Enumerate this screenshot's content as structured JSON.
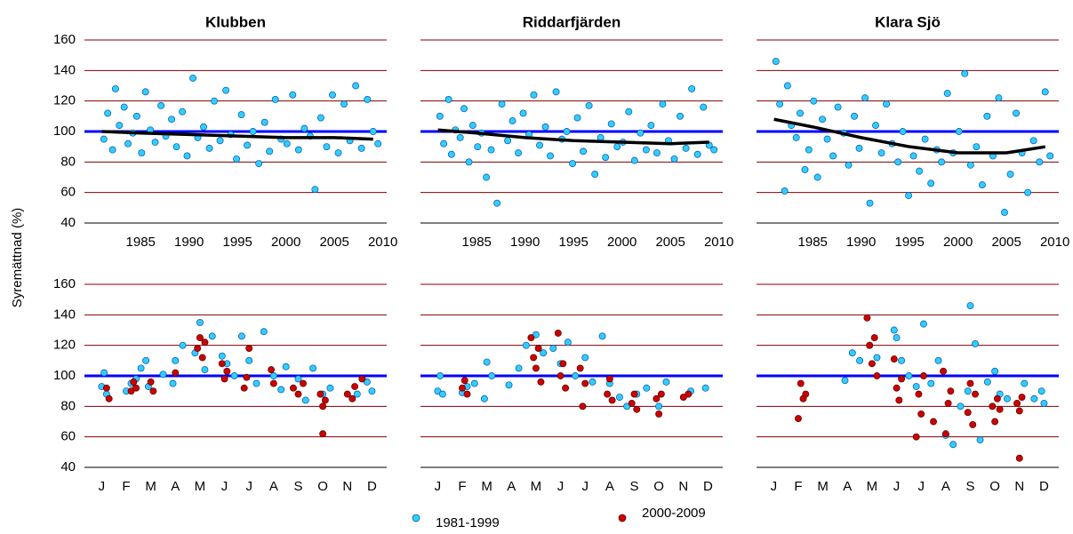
{
  "y_axis_label": "Syremättnad (%)",
  "legend": [
    {
      "label": "1981-1999",
      "color": "#33ccff"
    },
    {
      "label": "2000-2009",
      "color": "#cc0000"
    }
  ],
  "chart_data": [
    {
      "type": "scatter",
      "title": "Klubben",
      "show_ytick_labels": true,
      "xlim": [
        1979.2,
        2010.4
      ],
      "xticks": [
        1985,
        1990,
        1995,
        2000,
        2005,
        2010
      ],
      "ylim": [
        40,
        160
      ],
      "yticks": [
        40,
        60,
        80,
        100,
        120,
        140,
        160
      ],
      "grid": true,
      "grid_color": "#800000",
      "reference_line": {
        "value": 100,
        "color": "#0000ff"
      },
      "series": [
        {
          "color": "#33ccff",
          "x": [
            1981.2,
            1981.6,
            1982.1,
            1982.4,
            1982.8,
            1983.3,
            1983.7,
            1984.2,
            1984.6,
            1985.1,
            1985.5,
            1986.0,
            1986.5,
            1987.1,
            1987.6,
            1988.2,
            1988.7,
            1989.3,
            1989.8,
            1990.4,
            1990.9,
            1991.5,
            1992.1,
            1992.6,
            1993.2,
            1993.8,
            1994.3,
            1994.9,
            1995.4,
            1996.0,
            1996.6,
            1997.2,
            1997.8,
            1998.3,
            1998.9,
            1999.5,
            2000.1,
            2000.7,
            2001.3,
            2001.9,
            2002.5,
            2003.0,
            2003.6,
            2004.2,
            2004.8,
            2005.4,
            2006.0,
            2006.6,
            2007.2,
            2007.8,
            2008.4,
            2009.0,
            2009.5
          ],
          "values": [
            95,
            112,
            88,
            128,
            104,
            116,
            92,
            99,
            110,
            86,
            126,
            101,
            93,
            117,
            97,
            108,
            90,
            113,
            84,
            135,
            96,
            103,
            89,
            120,
            94,
            127,
            98,
            82,
            111,
            91,
            100,
            79,
            106,
            87,
            121,
            95,
            92,
            124,
            88,
            102,
            97,
            62,
            109,
            90,
            124,
            86,
            118,
            94,
            130,
            89,
            121,
            100,
            92
          ]
        }
      ],
      "trend": {
        "color": "#000000",
        "x": [
          1981,
          1985,
          1990,
          1995,
          2000,
          2005,
          2009
        ],
        "values": [
          100,
          99,
          98,
          97,
          96,
          96,
          95
        ]
      }
    },
    {
      "type": "scatter",
      "title": "Riddarfjärden",
      "show_ytick_labels": false,
      "xlim": [
        1979.2,
        2010.4
      ],
      "xticks": [
        1985,
        1990,
        1995,
        2000,
        2005,
        2010
      ],
      "ylim": [
        40,
        160
      ],
      "yticks": [
        40,
        60,
        80,
        100,
        120,
        140,
        160
      ],
      "grid": true,
      "grid_color": "#800000",
      "reference_line": {
        "value": 100,
        "color": "#0000ff"
      },
      "series": [
        {
          "color": "#33ccff",
          "x": [
            1981.2,
            1981.6,
            1982.1,
            1982.4,
            1982.8,
            1983.3,
            1983.7,
            1984.2,
            1984.6,
            1985.1,
            1985.5,
            1986.0,
            1986.5,
            1987.1,
            1987.6,
            1988.2,
            1988.7,
            1989.3,
            1989.8,
            1990.4,
            1990.9,
            1991.5,
            1992.1,
            1992.6,
            1993.2,
            1993.8,
            1994.3,
            1994.9,
            1995.4,
            1996.0,
            1996.6,
            1997.2,
            1997.8,
            1998.3,
            1998.9,
            1999.5,
            2000.1,
            2000.7,
            2001.3,
            2001.9,
            2002.5,
            2003.0,
            2003.6,
            2004.2,
            2004.8,
            2005.4,
            2006.0,
            2006.6,
            2007.2,
            2007.8,
            2008.4,
            2009.0,
            2009.5
          ],
          "values": [
            110,
            92,
            121,
            85,
            101,
            96,
            115,
            80,
            104,
            90,
            99,
            70,
            88,
            53,
            118,
            94,
            107,
            86,
            112,
            98,
            124,
            91,
            103,
            84,
            126,
            95,
            100,
            79,
            109,
            87,
            117,
            72,
            96,
            83,
            105,
            90,
            93,
            113,
            81,
            99,
            88,
            104,
            86,
            118,
            94,
            82,
            110,
            89,
            128,
            85,
            116,
            91,
            88
          ]
        }
      ],
      "trend": {
        "color": "#000000",
        "x": [
          1981,
          1985,
          1990,
          1995,
          2000,
          2005,
          2009
        ],
        "values": [
          101,
          99,
          96,
          94,
          93,
          92,
          93
        ]
      }
    },
    {
      "type": "scatter",
      "title": "Klara Sjö",
      "show_ytick_labels": false,
      "xlim": [
        1979.2,
        2010.4
      ],
      "xticks": [
        1985,
        1990,
        1995,
        2000,
        2005,
        2010
      ],
      "ylim": [
        40,
        160
      ],
      "yticks": [
        40,
        60,
        80,
        100,
        120,
        140,
        160
      ],
      "grid": true,
      "grid_color": "#800000",
      "reference_line": {
        "value": 100,
        "color": "#0000ff"
      },
      "series": [
        {
          "color": "#33ccff",
          "x": [
            1981.2,
            1981.6,
            1982.1,
            1982.4,
            1982.8,
            1983.3,
            1983.7,
            1984.2,
            1984.6,
            1985.1,
            1985.5,
            1986.0,
            1986.5,
            1987.1,
            1987.6,
            1988.2,
            1988.7,
            1989.3,
            1989.8,
            1990.4,
            1990.9,
            1991.5,
            1992.1,
            1992.6,
            1993.2,
            1993.8,
            1994.3,
            1994.9,
            1995.4,
            1996.0,
            1996.6,
            1997.2,
            1997.8,
            1998.3,
            1998.9,
            1999.5,
            2000.1,
            2000.7,
            2001.3,
            2001.9,
            2002.5,
            2003.0,
            2003.6,
            2004.2,
            2004.8,
            2005.4,
            2006.0,
            2006.6,
            2007.2,
            2007.8,
            2008.4,
            2009.0,
            2009.5
          ],
          "values": [
            146,
            118,
            61,
            130,
            104,
            96,
            112,
            75,
            88,
            120,
            70,
            108,
            95,
            84,
            116,
            99,
            78,
            110,
            89,
            122,
            53,
            104,
            86,
            118,
            92,
            80,
            100,
            58,
            84,
            74,
            95,
            66,
            88,
            80,
            125,
            86,
            100,
            138,
            78,
            90,
            65,
            110,
            84,
            122,
            47,
            72,
            112,
            86,
            60,
            94,
            80,
            126,
            84
          ]
        }
      ],
      "trend": {
        "color": "#000000",
        "x": [
          1981,
          1985,
          1990,
          1995,
          2000,
          2005,
          2009
        ],
        "values": [
          108,
          103,
          96,
          90,
          86,
          86,
          90
        ]
      }
    },
    {
      "type": "scatter",
      "show_ytick_labels": true,
      "xlim": [
        0.3,
        12.6
      ],
      "xticks": [
        {
          "value": 1,
          "label": "J"
        },
        {
          "value": 2,
          "label": "F"
        },
        {
          "value": 3,
          "label": "M"
        },
        {
          "value": 4,
          "label": "A"
        },
        {
          "value": 5,
          "label": "M"
        },
        {
          "value": 6,
          "label": "J"
        },
        {
          "value": 7,
          "label": "J"
        },
        {
          "value": 8,
          "label": "A"
        },
        {
          "value": 9,
          "label": "S"
        },
        {
          "value": 10,
          "label": "O"
        },
        {
          "value": 11,
          "label": "N"
        },
        {
          "value": 12,
          "label": "D"
        }
      ],
      "ylim": [
        40,
        160
      ],
      "yticks": [
        40,
        60,
        80,
        100,
        120,
        140,
        160
      ],
      "grid": true,
      "grid_color": "#800000",
      "reference_line": {
        "value": 100,
        "color": "#0000ff"
      },
      "series": [
        {
          "color": "#33ccff",
          "x": [
            1.0,
            1.1,
            1.2,
            2.0,
            2.2,
            2.4,
            2.6,
            2.8,
            2.9,
            3.5,
            3.9,
            4.0,
            4.3,
            4.8,
            5.0,
            5.2,
            5.5,
            5.9,
            6.1,
            6.4,
            6.7,
            7.0,
            7.3,
            7.6,
            8.0,
            8.3,
            8.5,
            9.0,
            9.3,
            9.6,
            10.0,
            10.3,
            11.4,
            11.8,
            12.0
          ],
          "values": [
            93,
            102,
            88,
            90,
            95,
            98,
            105,
            110,
            93,
            101,
            95,
            110,
            120,
            115,
            135,
            104,
            126,
            113,
            108,
            100,
            126,
            110,
            95,
            129,
            100,
            91,
            106,
            98,
            84,
            105,
            88,
            92,
            88,
            96,
            90
          ]
        },
        {
          "color": "#cc0000",
          "x": [
            1.2,
            1.3,
            2.2,
            2.3,
            2.4,
            3.0,
            3.1,
            4.0,
            4.9,
            5.0,
            5.1,
            5.2,
            5.9,
            6.0,
            6.1,
            6.8,
            6.9,
            7.0,
            7.9,
            8.0,
            8.8,
            9.0,
            9.2,
            9.9,
            10.0,
            10.1,
            10.0,
            11.0,
            11.2,
            11.3,
            11.6
          ],
          "values": [
            92,
            85,
            90,
            96,
            92,
            96,
            90,
            102,
            118,
            125,
            112,
            122,
            108,
            98,
            103,
            92,
            99,
            118,
            104,
            95,
            92,
            88,
            95,
            88,
            80,
            84,
            62,
            88,
            85,
            93,
            98
          ]
        }
      ]
    },
    {
      "type": "scatter",
      "show_ytick_labels": false,
      "xlim": [
        0.3,
        12.6
      ],
      "xticks": [
        {
          "value": 1,
          "label": "J"
        },
        {
          "value": 2,
          "label": "F"
        },
        {
          "value": 3,
          "label": "M"
        },
        {
          "value": 4,
          "label": "A"
        },
        {
          "value": 5,
          "label": "M"
        },
        {
          "value": 6,
          "label": "J"
        },
        {
          "value": 7,
          "label": "J"
        },
        {
          "value": 8,
          "label": "A"
        },
        {
          "value": 9,
          "label": "S"
        },
        {
          "value": 10,
          "label": "O"
        },
        {
          "value": 11,
          "label": "N"
        },
        {
          "value": 12,
          "label": "D"
        }
      ],
      "ylim": [
        40,
        160
      ],
      "yticks": [
        40,
        60,
        80,
        100,
        120,
        140,
        160
      ],
      "grid": true,
      "grid_color": "#800000",
      "reference_line": {
        "value": 100,
        "color": "#0000ff"
      },
      "series": [
        {
          "color": "#33ccff",
          "x": [
            1.0,
            1.1,
            1.2,
            2.0,
            2.2,
            2.5,
            2.9,
            3.0,
            3.2,
            3.9,
            4.3,
            4.6,
            5.0,
            5.3,
            5.7,
            6.0,
            6.3,
            6.6,
            7.0,
            7.3,
            7.7,
            8.0,
            8.4,
            8.7,
            9.1,
            9.5,
            10.0,
            10.3,
            11.3,
            11.9
          ],
          "values": [
            90,
            100,
            88,
            89,
            93,
            95,
            85,
            109,
            100,
            94,
            105,
            120,
            127,
            115,
            118,
            108,
            122,
            100,
            112,
            96,
            126,
            95,
            86,
            80,
            88,
            92,
            80,
            96,
            90,
            92
          ]
        },
        {
          "color": "#cc0000",
          "x": [
            2.0,
            2.1,
            2.2,
            4.8,
            4.9,
            5.0,
            5.1,
            5.2,
            5.9,
            6.0,
            6.1,
            6.2,
            6.8,
            6.9,
            7.0,
            7.9,
            8.0,
            8.1,
            8.9,
            9.0,
            9.1,
            9.9,
            10.0,
            10.1,
            11.0,
            11.2
          ],
          "values": [
            92,
            97,
            88,
            125,
            112,
            105,
            118,
            96,
            128,
            100,
            108,
            92,
            105,
            80,
            95,
            88,
            98,
            84,
            82,
            88,
            78,
            85,
            75,
            88,
            86,
            88
          ]
        }
      ]
    },
    {
      "type": "scatter",
      "show_ytick_labels": false,
      "xlim": [
        0.3,
        12.6
      ],
      "xticks": [
        {
          "value": 1,
          "label": "J"
        },
        {
          "value": 2,
          "label": "F"
        },
        {
          "value": 3,
          "label": "M"
        },
        {
          "value": 4,
          "label": "A"
        },
        {
          "value": 5,
          "label": "M"
        },
        {
          "value": 6,
          "label": "J"
        },
        {
          "value": 7,
          "label": "J"
        },
        {
          "value": 8,
          "label": "A"
        },
        {
          "value": 9,
          "label": "S"
        },
        {
          "value": 10,
          "label": "O"
        },
        {
          "value": 11,
          "label": "N"
        },
        {
          "value": 12,
          "label": "D"
        }
      ],
      "ylim": [
        40,
        160
      ],
      "yticks": [
        40,
        60,
        80,
        100,
        120,
        140,
        160
      ],
      "grid": true,
      "grid_color": "#800000",
      "reference_line": {
        "value": 100,
        "color": "#0000ff"
      },
      "series": [
        {
          "color": "#33ccff",
          "x": [
            3.9,
            4.2,
            4.5,
            4.9,
            5.2,
            5.9,
            6.0,
            6.2,
            6.5,
            6.8,
            7.1,
            7.4,
            7.7,
            8.0,
            8.3,
            8.6,
            8.9,
            9.0,
            9.2,
            9.4,
            9.7,
            10.0,
            10.2,
            10.5,
            11.2,
            11.6,
            11.9,
            12.0
          ],
          "values": [
            97,
            115,
            110,
            120,
            112,
            130,
            125,
            110,
            100,
            93,
            134,
            95,
            110,
            61,
            55,
            80,
            90,
            146,
            121,
            58,
            96,
            103,
            88,
            85,
            95,
            85,
            90,
            82
          ]
        },
        {
          "color": "#cc0000",
          "x": [
            2.0,
            2.1,
            2.2,
            2.3,
            4.8,
            4.9,
            5.0,
            5.1,
            5.2,
            5.9,
            6.0,
            6.1,
            6.2,
            6.8,
            6.9,
            7.0,
            7.1,
            7.5,
            7.9,
            8.0,
            8.1,
            8.2,
            8.9,
            9.0,
            9.1,
            9.2,
            9.9,
            10.0,
            10.1,
            10.2,
            10.9,
            11.0,
            11.1,
            11.0
          ],
          "values": [
            72,
            95,
            85,
            88,
            138,
            120,
            108,
            125,
            100,
            111,
            92,
            84,
            98,
            60,
            88,
            75,
            100,
            70,
            103,
            62,
            82,
            90,
            76,
            95,
            68,
            88,
            80,
            70,
            85,
            78,
            82,
            46,
            86,
            77
          ]
        }
      ]
    }
  ]
}
